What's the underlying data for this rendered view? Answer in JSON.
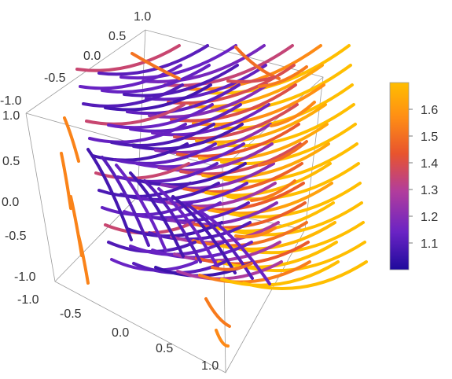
{
  "chart_data": {
    "type": "stream-3d",
    "title": "",
    "axes": {
      "x": {
        "range": [
          -1,
          1
        ],
        "ticks": [
          "-1.0",
          "-0.5",
          "0.0",
          "0.5",
          "1.0"
        ]
      },
      "y": {
        "range": [
          -1,
          1
        ],
        "ticks": [
          "-1.0",
          "-0.5",
          "0.0",
          "0.5",
          "1.0"
        ]
      },
      "z": {
        "range": [
          -1,
          1
        ],
        "ticks": [
          "-1.0",
          "-0.5",
          "0.0",
          "0.5",
          "1.0"
        ]
      }
    },
    "box": true,
    "colorbar": {
      "min": 1.0,
      "max": 1.7,
      "ticks": [
        "1.1",
        "1.2",
        "1.3",
        "1.4",
        "1.5",
        "1.6"
      ],
      "tick_values": [
        1.1,
        1.2,
        1.3,
        1.4,
        1.5,
        1.6
      ],
      "colors": [
        "#1f0a9c",
        "#6a23c4",
        "#b23d9c",
        "#e8542e",
        "#ff8f14",
        "#ffbe00"
      ],
      "placement": "right"
    }
  }
}
